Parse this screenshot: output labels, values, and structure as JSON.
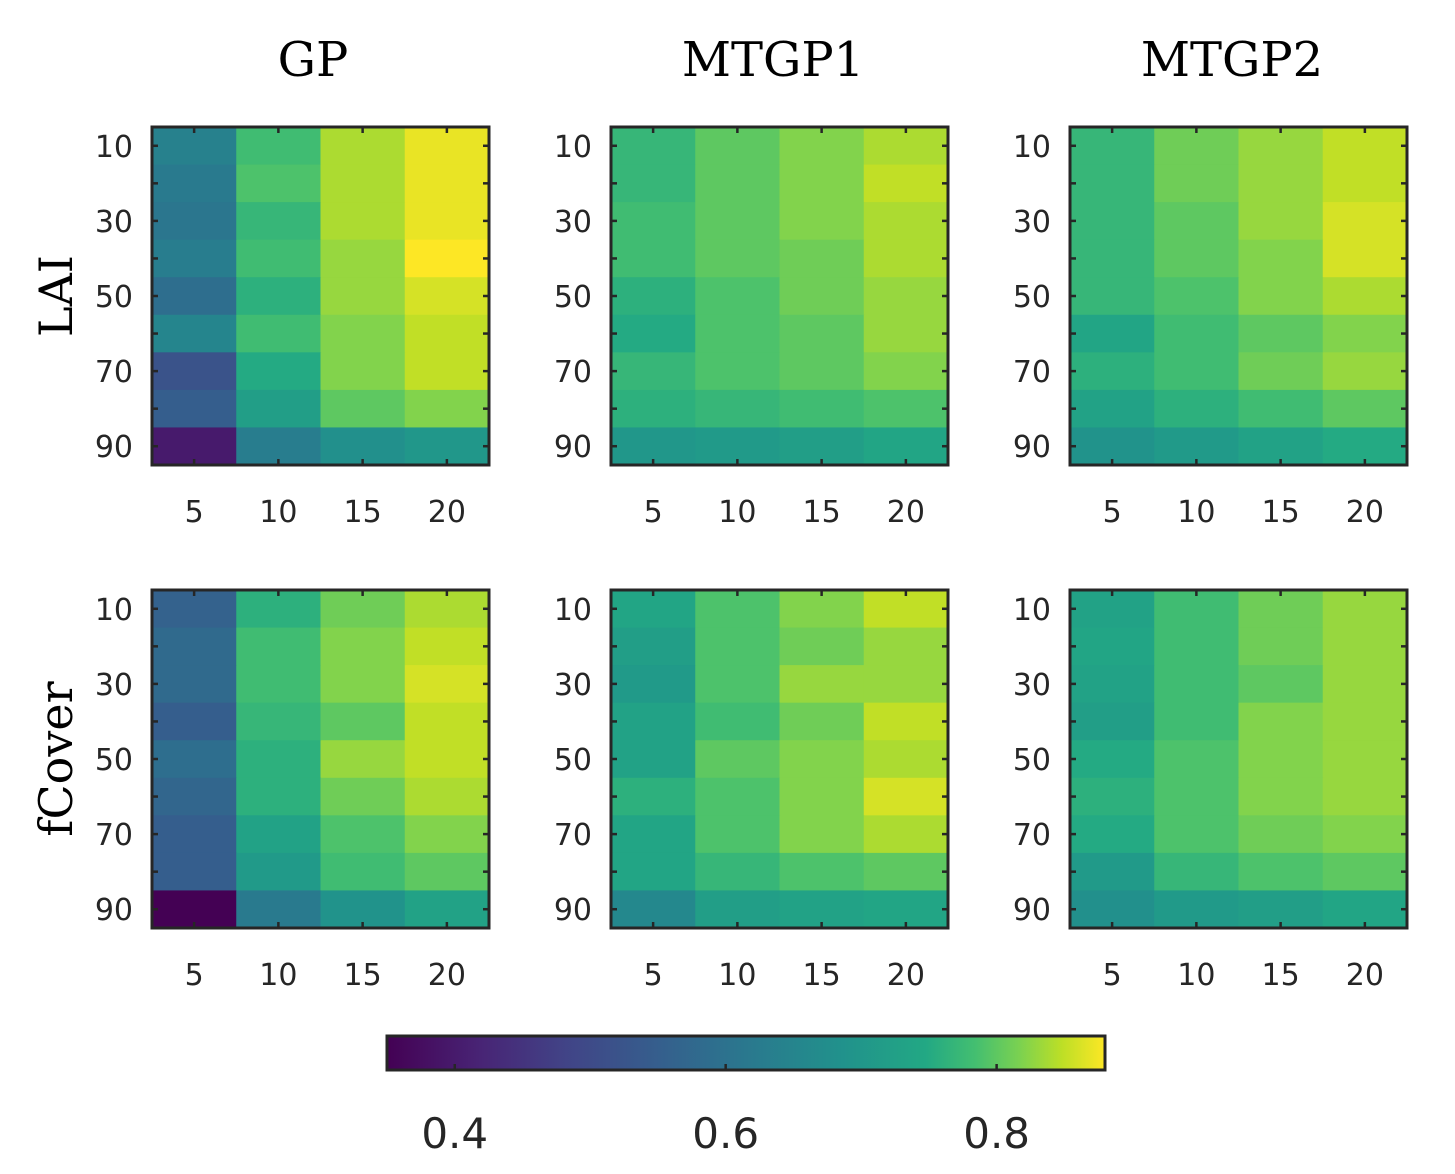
{
  "chart_data": {
    "type": "heatmap",
    "column_titles": [
      "GP",
      "MTGP1",
      "MTGP2"
    ],
    "row_labels": [
      "LAI",
      "fCover"
    ],
    "x_categories": [
      5,
      10,
      15,
      20
    ],
    "y_categories": [
      10,
      20,
      30,
      40,
      50,
      60,
      70,
      80,
      90
    ],
    "x_tick_labels": [
      "5",
      "10",
      "15",
      "20"
    ],
    "y_tick_labels": [
      "10",
      "30",
      "50",
      "70",
      "90"
    ],
    "colorbar": {
      "colormap": "viridis",
      "range": [
        0.35,
        0.88
      ],
      "ticks": [
        0.4,
        0.6,
        0.8
      ],
      "tick_labels": [
        "0.4",
        "0.6",
        "0.8"
      ]
    },
    "panels": [
      {
        "row": "LAI",
        "column": "GP",
        "values": [
          [
            0.64,
            0.78,
            0.84,
            0.87
          ],
          [
            0.62,
            0.79,
            0.84,
            0.87
          ],
          [
            0.61,
            0.77,
            0.84,
            0.87
          ],
          [
            0.63,
            0.78,
            0.83,
            0.88
          ],
          [
            0.59,
            0.76,
            0.83,
            0.86
          ],
          [
            0.65,
            0.78,
            0.82,
            0.85
          ],
          [
            0.52,
            0.75,
            0.82,
            0.85
          ],
          [
            0.55,
            0.72,
            0.8,
            0.82
          ],
          [
            0.4,
            0.63,
            0.68,
            0.7
          ]
        ]
      },
      {
        "row": "LAI",
        "column": "MTGP1",
        "values": [
          [
            0.77,
            0.8,
            0.82,
            0.84
          ],
          [
            0.77,
            0.8,
            0.82,
            0.85
          ],
          [
            0.78,
            0.8,
            0.82,
            0.84
          ],
          [
            0.78,
            0.8,
            0.81,
            0.84
          ],
          [
            0.76,
            0.79,
            0.81,
            0.83
          ],
          [
            0.75,
            0.79,
            0.8,
            0.83
          ],
          [
            0.77,
            0.79,
            0.8,
            0.82
          ],
          [
            0.76,
            0.77,
            0.78,
            0.79
          ],
          [
            0.7,
            0.71,
            0.72,
            0.74
          ]
        ]
      },
      {
        "row": "LAI",
        "column": "MTGP2",
        "values": [
          [
            0.77,
            0.81,
            0.83,
            0.85
          ],
          [
            0.77,
            0.81,
            0.83,
            0.85
          ],
          [
            0.77,
            0.8,
            0.83,
            0.86
          ],
          [
            0.77,
            0.8,
            0.82,
            0.86
          ],
          [
            0.77,
            0.79,
            0.82,
            0.84
          ],
          [
            0.74,
            0.78,
            0.8,
            0.82
          ],
          [
            0.76,
            0.78,
            0.81,
            0.83
          ],
          [
            0.73,
            0.76,
            0.78,
            0.8
          ],
          [
            0.69,
            0.71,
            0.73,
            0.75
          ]
        ]
      },
      {
        "row": "fCover",
        "column": "GP",
        "values": [
          [
            0.56,
            0.76,
            0.81,
            0.84
          ],
          [
            0.58,
            0.78,
            0.82,
            0.85
          ],
          [
            0.58,
            0.78,
            0.82,
            0.86
          ],
          [
            0.55,
            0.77,
            0.8,
            0.85
          ],
          [
            0.59,
            0.76,
            0.83,
            0.85
          ],
          [
            0.57,
            0.76,
            0.81,
            0.84
          ],
          [
            0.55,
            0.73,
            0.79,
            0.82
          ],
          [
            0.55,
            0.71,
            0.78,
            0.8
          ],
          [
            0.35,
            0.62,
            0.69,
            0.73
          ]
        ]
      },
      {
        "row": "fCover",
        "column": "MTGP1",
        "values": [
          [
            0.74,
            0.79,
            0.82,
            0.85
          ],
          [
            0.72,
            0.79,
            0.81,
            0.83
          ],
          [
            0.71,
            0.79,
            0.83,
            0.83
          ],
          [
            0.73,
            0.78,
            0.81,
            0.85
          ],
          [
            0.73,
            0.8,
            0.82,
            0.84
          ],
          [
            0.76,
            0.79,
            0.82,
            0.86
          ],
          [
            0.74,
            0.79,
            0.82,
            0.84
          ],
          [
            0.74,
            0.77,
            0.79,
            0.8
          ],
          [
            0.66,
            0.72,
            0.73,
            0.74
          ]
        ]
      },
      {
        "row": "fCover",
        "column": "MTGP2",
        "values": [
          [
            0.73,
            0.78,
            0.81,
            0.83
          ],
          [
            0.74,
            0.78,
            0.81,
            0.83
          ],
          [
            0.73,
            0.78,
            0.8,
            0.83
          ],
          [
            0.72,
            0.78,
            0.82,
            0.83
          ],
          [
            0.75,
            0.79,
            0.82,
            0.83
          ],
          [
            0.76,
            0.79,
            0.82,
            0.83
          ],
          [
            0.75,
            0.79,
            0.81,
            0.82
          ],
          [
            0.71,
            0.77,
            0.79,
            0.8
          ],
          [
            0.68,
            0.71,
            0.72,
            0.74
          ]
        ]
      }
    ]
  }
}
